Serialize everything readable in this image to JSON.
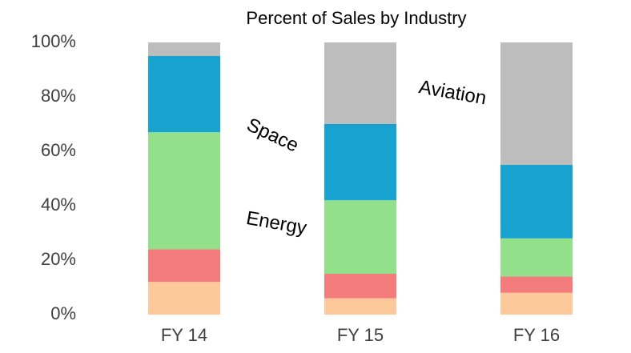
{
  "chart_data": {
    "type": "stacked_bar",
    "title": "Percent of Sales by Industry",
    "categories": [
      "FY 14",
      "FY 15",
      "FY 16"
    ],
    "series": [
      {
        "color": "#fdc89a",
        "values": [
          12,
          6,
          8
        ]
      },
      {
        "color": "#f47c7c",
        "values": [
          12,
          9,
          6
        ]
      },
      {
        "name": "Energy",
        "color": "#93e08a",
        "values": [
          43,
          27,
          14
        ]
      },
      {
        "name": "Space",
        "color": "#17a2d0",
        "values": [
          28,
          28,
          27
        ]
      },
      {
        "name": "Aviation",
        "color": "#bdbdbd",
        "values": [
          5,
          30,
          45
        ]
      }
    ],
    "ylim": [
      0,
      100
    ],
    "yticks": [
      {
        "value": 0,
        "label": "0%"
      },
      {
        "value": 20,
        "label": "20%"
      },
      {
        "value": 40,
        "label": "40%"
      },
      {
        "value": 60,
        "label": "60%"
      },
      {
        "value": 80,
        "label": "80%"
      },
      {
        "value": 100,
        "label": "100%"
      }
    ],
    "grid": false
  }
}
